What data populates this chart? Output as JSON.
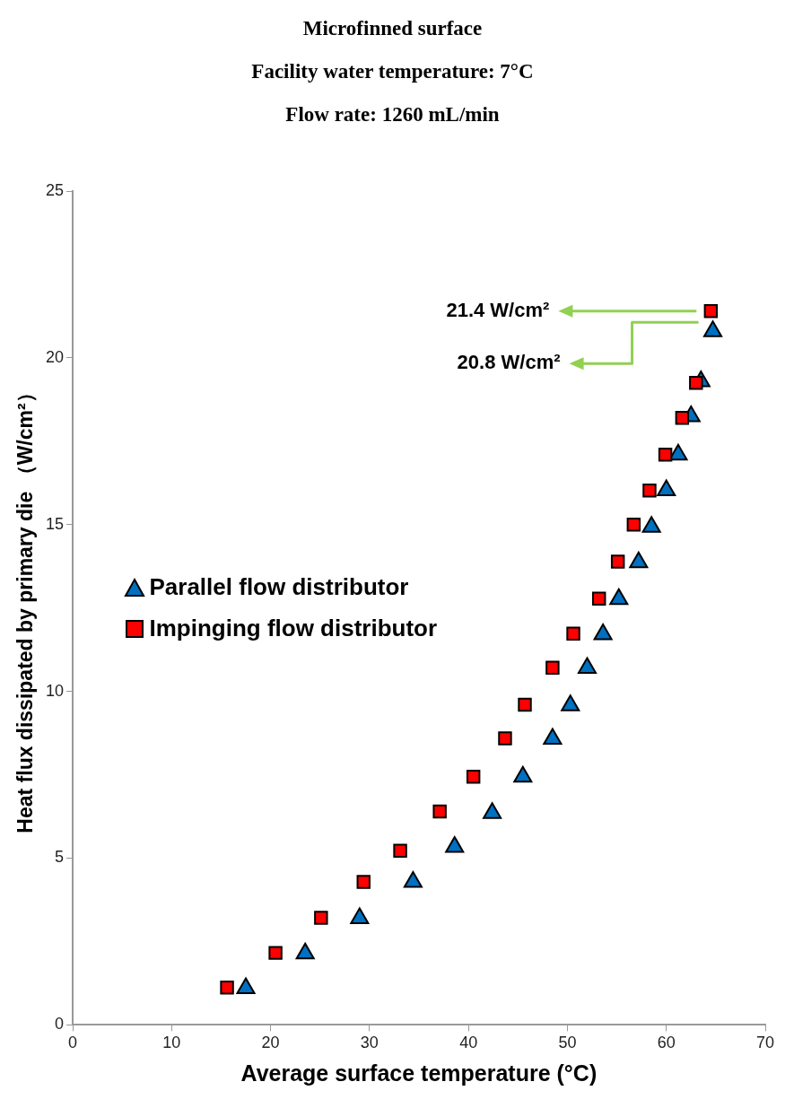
{
  "chart_data": {
    "type": "scatter",
    "title": "Microfinned surface",
    "subtitle": "Facility water temperature: 7°C\nFlow rate: 1260 mL/min",
    "xlabel": "Average surface temperature (°C)",
    "ylabel": "Heat flux dissipated by  primary die （W/cm²）",
    "xlim": [
      0,
      70
    ],
    "xticks": [
      0,
      10,
      20,
      30,
      40,
      50,
      60,
      70
    ],
    "ylim": [
      0,
      25
    ],
    "yticks": [
      0,
      5,
      10,
      15,
      20,
      25
    ],
    "grid": false,
    "legend": "left",
    "series": [
      {
        "name": "Parallel flow distributor",
        "color": "#0070c0",
        "marker": "triangle",
        "x": [
          17.5,
          23.5,
          29.0,
          34.4,
          38.6,
          42.4,
          45.5,
          48.5,
          50.3,
          52.0,
          53.6,
          55.2,
          57.2,
          58.5,
          60.0,
          61.2,
          62.5,
          63.5,
          64.7
        ],
        "values": [
          1.1,
          2.14,
          3.2,
          4.29,
          5.34,
          6.35,
          7.44,
          8.58,
          9.58,
          10.7,
          11.71,
          12.77,
          13.87,
          14.93,
          16.03,
          17.1,
          18.25,
          19.3,
          20.8
        ]
      },
      {
        "name": "Impinging flow distributor",
        "color": "#ff0000",
        "marker": "square",
        "x": [
          15.6,
          20.5,
          25.1,
          29.4,
          33.1,
          37.1,
          40.5,
          43.7,
          45.7,
          48.5,
          50.6,
          53.2,
          55.1,
          56.7,
          58.3,
          59.9,
          61.6,
          63.0,
          64.5
        ],
        "values": [
          1.12,
          2.16,
          3.21,
          4.29,
          5.22,
          6.4,
          7.44,
          8.59,
          9.6,
          10.71,
          11.73,
          12.78,
          13.89,
          15.0,
          16.02,
          17.1,
          18.2,
          19.25,
          21.4
        ]
      }
    ],
    "annotations": [
      "21.4 W/cm²",
      "20.8 W/cm²"
    ]
  }
}
